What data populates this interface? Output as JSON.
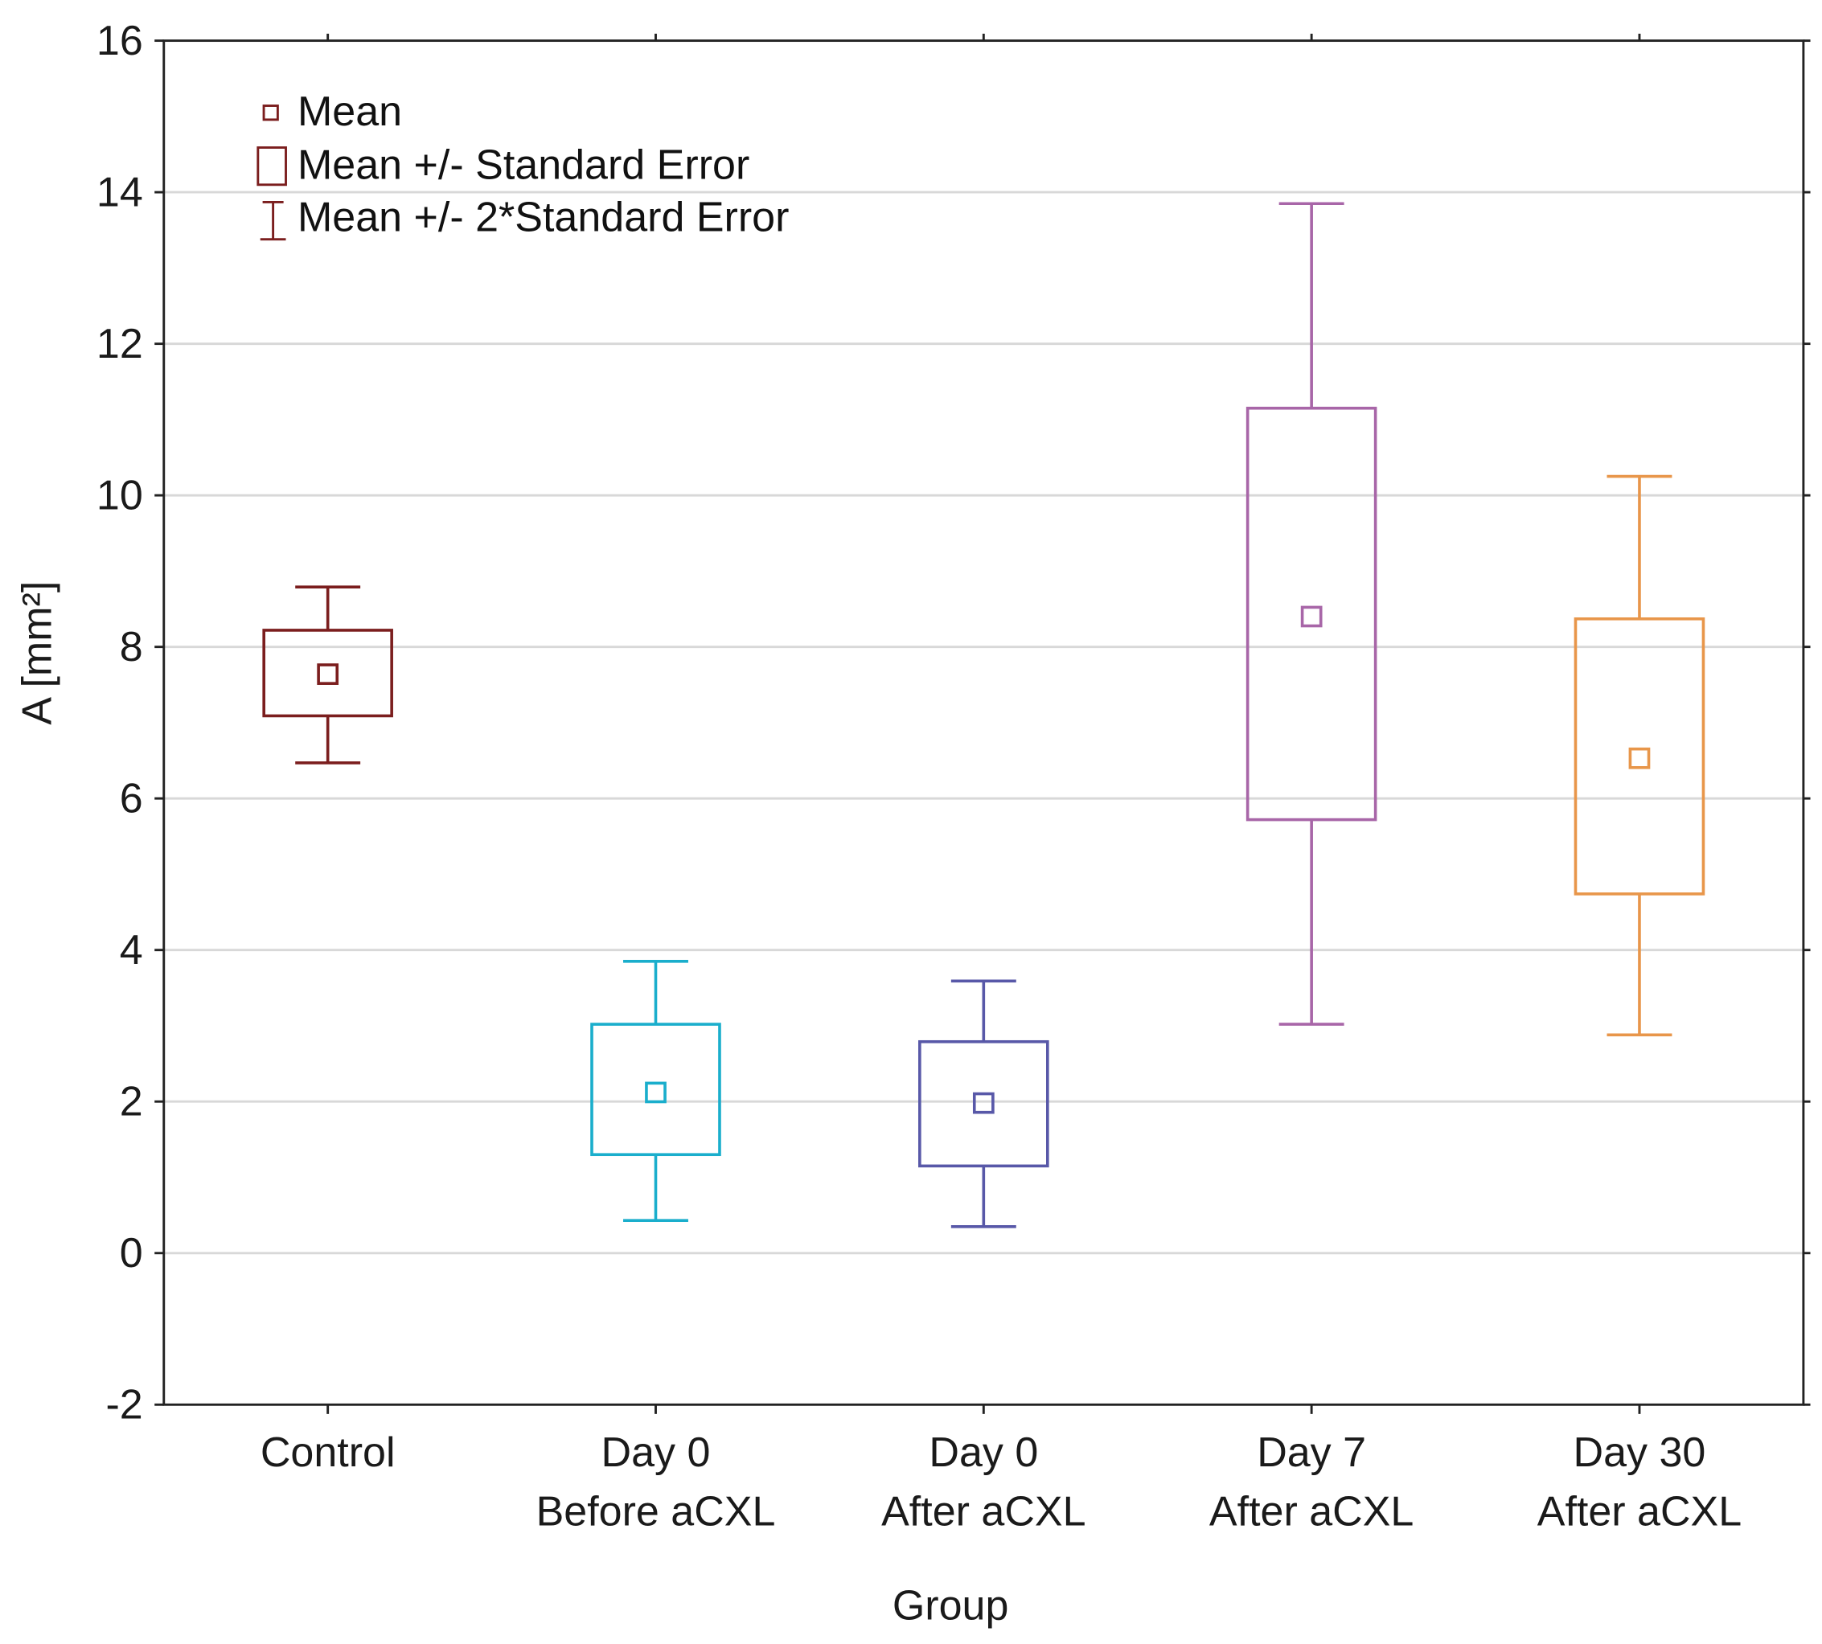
{
  "chart_data": {
    "type": "box",
    "title": "",
    "xlabel": "Group",
    "ylabel": "A [mm²]",
    "ylim": [
      -2,
      16
    ],
    "yticks": [
      -2,
      0,
      2,
      4,
      6,
      8,
      10,
      12,
      14,
      16
    ],
    "grid": true,
    "legend": {
      "placement": "top-left",
      "entries": [
        "Mean",
        "Mean +/- Standard Error",
        "Mean +/- 2*Standard Error"
      ],
      "color": "#7b1e1e"
    },
    "categories": [
      {
        "line1": "Control",
        "line2": "",
        "color": "#7b1e1e",
        "mean": 7.64,
        "se_low": 7.09,
        "se_high": 8.22,
        "se2_low": 6.47,
        "se2_high": 8.79
      },
      {
        "line1": "Day 0",
        "line2": "Before aCXL",
        "color": "#1aaecc",
        "mean": 2.12,
        "se_low": 1.3,
        "se_high": 3.02,
        "se2_low": 0.43,
        "se2_high": 3.85
      },
      {
        "line1": "Day 0",
        "line2": "After aCXL",
        "color": "#5858a8",
        "mean": 1.98,
        "se_low": 1.15,
        "se_high": 2.79,
        "se2_low": 0.35,
        "se2_high": 3.59
      },
      {
        "line1": "Day 7",
        "line2": "After aCXL",
        "color": "#a866a8",
        "mean": 8.4,
        "se_low": 5.72,
        "se_high": 11.15,
        "se2_low": 3.02,
        "se2_high": 13.85
      },
      {
        "line1": "Day 30",
        "line2": "After aCXL",
        "color": "#e8964a",
        "mean": 6.53,
        "se_low": 4.74,
        "se_high": 8.37,
        "se2_low": 2.88,
        "se2_high": 10.25
      }
    ]
  }
}
